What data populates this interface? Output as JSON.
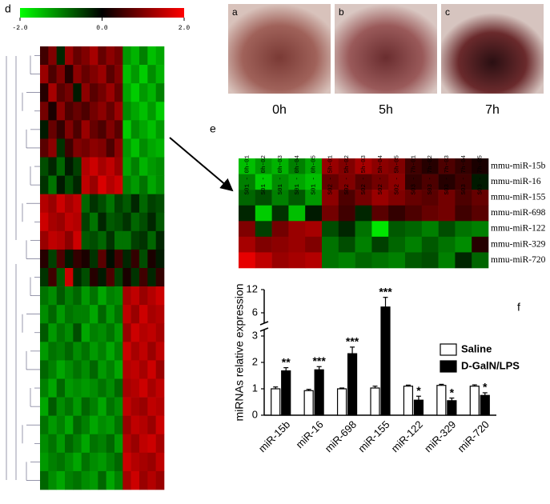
{
  "photos": {
    "panels": [
      "a",
      "b",
      "c"
    ],
    "times": [
      "0h",
      "5h",
      "7h"
    ]
  },
  "chart_data": [
    {
      "type": "heatmap",
      "label": "d",
      "zlim": [
        -2,
        2
      ],
      "zticks": [
        {
          "value": -2,
          "label": "-2.0"
        },
        {
          "value": 0,
          "label": "0.0"
        },
        {
          "value": 2,
          "label": "2.0"
        }
      ],
      "values": [
        [
          0.5,
          1.0,
          -0.3,
          1.2,
          0.8,
          1.0,
          1.3,
          0.8,
          1.1,
          0.9,
          -1.2,
          -1.4,
          -1.0,
          -1.5,
          -1.3
        ],
        [
          1.2,
          0.6,
          1.0,
          0.3,
          1.1,
          0.8,
          1.0,
          1.2,
          0.7,
          1.0,
          -1.5,
          -1.2,
          -1.6,
          -1.1,
          -1.4
        ],
        [
          0.3,
          1.3,
          0.7,
          0.9,
          -0.2,
          1.1,
          0.7,
          0.9,
          1.2,
          0.8,
          -1.3,
          -1.6,
          -1.2,
          -1.4,
          -1.0
        ],
        [
          0.9,
          0.2,
          1.1,
          0.6,
          0.8,
          0.6,
          0.9,
          1.1,
          0.8,
          1.2,
          -1.1,
          -1.3,
          -1.5,
          -1.2,
          -1.6
        ],
        [
          -0.2,
          0.8,
          0.4,
          1.0,
          0.6,
          1.2,
          0.8,
          0.6,
          1.0,
          0.7,
          -1.6,
          -1.1,
          -1.3,
          -1.5,
          -1.2
        ],
        [
          0.7,
          1.1,
          -0.4,
          0.5,
          1.0,
          0.9,
          1.1,
          1.0,
          0.6,
          1.1,
          -1.2,
          -1.5,
          -1.1,
          -1.3,
          -1.4
        ],
        [
          -0.6,
          -0.3,
          -0.8,
          -0.2,
          -0.5,
          1.4,
          1.6,
          1.3,
          1.5,
          1.2,
          -1.3,
          -1.0,
          -1.4,
          -1.2,
          -1.1
        ],
        [
          -0.4,
          -0.9,
          -0.2,
          -0.6,
          -0.3,
          1.5,
          1.2,
          1.7,
          1.4,
          1.6,
          -1.0,
          -1.2,
          -0.9,
          -1.3,
          -1.1
        ],
        [
          1.4,
          1.2,
          1.6,
          1.3,
          1.5,
          -0.8,
          -0.4,
          -0.6,
          -0.9,
          -0.5,
          -0.7,
          -0.3,
          -0.8,
          -0.5,
          -0.6
        ],
        [
          1.6,
          1.3,
          1.2,
          1.5,
          1.4,
          -0.5,
          -0.9,
          -0.3,
          -0.7,
          -0.6,
          -0.4,
          -0.8,
          -0.6,
          -0.3,
          -0.7
        ],
        [
          1.2,
          1.5,
          1.4,
          1.1,
          1.6,
          -0.7,
          -0.6,
          -0.8,
          -0.4,
          -0.9,
          -0.9,
          -0.5,
          -0.4,
          -0.8,
          -0.3
        ],
        [
          0.3,
          -0.5,
          0.6,
          -0.2,
          0.4,
          0.2,
          -0.4,
          0.7,
          -0.1,
          0.5,
          -0.3,
          0.4,
          -0.6,
          0.2,
          -0.2
        ],
        [
          -0.4,
          0.5,
          -0.7,
          1.6,
          -0.3,
          -0.6,
          0.3,
          -0.2,
          0.6,
          -0.5,
          0.2,
          -0.4,
          0.5,
          -0.3,
          0.4
        ],
        [
          -0.9,
          -1.1,
          -0.7,
          -1.0,
          -0.8,
          -1.2,
          -0.9,
          -1.3,
          -1.0,
          -1.1,
          1.3,
          1.5,
          1.2,
          1.4,
          1.6
        ],
        [
          -1.1,
          -0.8,
          -1.2,
          -0.9,
          -1.0,
          -1.0,
          -1.3,
          -0.8,
          -1.2,
          -0.9,
          1.5,
          1.2,
          1.6,
          1.3,
          1.4
        ],
        [
          -0.7,
          -1.2,
          -0.9,
          -1.1,
          -0.6,
          -1.3,
          -1.0,
          -1.1,
          -0.9,
          -1.2,
          1.2,
          1.6,
          1.4,
          1.5,
          1.3
        ],
        [
          -1.2,
          -0.9,
          -1.0,
          -0.8,
          -1.1,
          -0.9,
          -1.2,
          -1.0,
          -1.3,
          -1.0,
          1.6,
          1.3,
          1.5,
          1.2,
          1.5
        ],
        [
          -0.8,
          -1.0,
          -1.3,
          -1.1,
          -0.9,
          -1.1,
          -0.8,
          -1.2,
          -1.0,
          -1.3,
          1.4,
          1.5,
          1.3,
          1.6,
          1.2
        ],
        [
          -1.0,
          -1.3,
          -0.8,
          -1.2,
          -1.1,
          -1.2,
          -1.1,
          -0.9,
          -1.1,
          -0.8,
          1.3,
          1.4,
          1.6,
          1.3,
          1.5
        ],
        [
          -1.3,
          -0.7,
          -1.1,
          -0.9,
          -1.2,
          -0.8,
          -1.0,
          -1.3,
          -0.9,
          -1.1,
          1.5,
          1.3,
          1.2,
          1.5,
          1.4
        ],
        [
          -0.9,
          -1.2,
          -1.0,
          -1.3,
          -0.8,
          -1.0,
          -1.3,
          -1.1,
          -1.2,
          -0.9,
          1.2,
          1.5,
          1.4,
          1.2,
          1.6
        ],
        [
          -1.1,
          -0.9,
          -1.2,
          -0.8,
          -1.0,
          -1.3,
          -0.9,
          -1.0,
          -0.8,
          -1.2,
          1.4,
          1.2,
          1.5,
          1.6,
          1.3
        ],
        [
          -1.2,
          -1.0,
          -0.9,
          -1.1,
          -1.3,
          -0.9,
          -1.1,
          -1.2,
          -1.0,
          -0.8,
          1.6,
          1.4,
          1.3,
          1.2,
          1.5
        ],
        [
          -0.8,
          -1.1,
          -1.3,
          -1.0,
          -0.9,
          -1.1,
          -1.2,
          -0.8,
          -1.3,
          -1.0,
          1.3,
          1.6,
          1.2,
          1.4,
          1.2
        ]
      ]
    },
    {
      "type": "heatmap",
      "label": "e",
      "zlim": [
        -2,
        2
      ],
      "x": [
        "S01 - 0h-01",
        "S01 - 0h-02",
        "S01 - 0h-03",
        "S01 - 0h-04",
        "S01 - 0h-05",
        "S02 - 5h-01",
        "S02 - 5h-02",
        "S02 - 5h-03",
        "S02 - 5h-04",
        "S02 - 5h-05",
        "S03 - 7h-01",
        "S03 - 7h-02",
        "S03 - 7h-03",
        "S03 - 7h-04",
        "S03 - 7h-05"
      ],
      "y": [
        "mmu-miR-15b",
        "mmu-miR-16",
        "mmu-miR-155",
        "mmu-miR-698",
        "mmu-miR-122",
        "mmu-miR-329",
        "mmu-miR-720"
      ],
      "values": [
        [
          -1.5,
          -1.2,
          -1.4,
          -1.0,
          -1.3,
          1.2,
          1.0,
          1.3,
          1.1,
          1.0,
          0.5,
          0.3,
          0.6,
          0.4,
          0.2
        ],
        [
          -1.0,
          -1.6,
          -1.1,
          -1.3,
          -1.5,
          0.8,
          1.0,
          0.7,
          0.9,
          1.1,
          0.4,
          0.6,
          0.3,
          0.5,
          -0.2
        ],
        [
          -0.8,
          -0.6,
          -1.0,
          -0.7,
          -1.2,
          1.1,
          0.6,
          0.9,
          1.2,
          1.0,
          0.8,
          0.7,
          0.9,
          0.6,
          0.8
        ],
        [
          -0.3,
          -1.6,
          -0.4,
          -1.5,
          -0.2,
          0.9,
          0.5,
          -0.3,
          0.7,
          0.4,
          0.6,
          0.8,
          0.9,
          0.5,
          0.7
        ],
        [
          1.0,
          -0.5,
          0.9,
          1.2,
          1.3,
          -0.6,
          -0.3,
          -0.9,
          -1.8,
          -0.7,
          -0.8,
          -1.0,
          -0.6,
          -0.9,
          -1.0
        ],
        [
          1.3,
          1.0,
          1.1,
          1.2,
          1.0,
          -0.9,
          -0.6,
          -1.0,
          -0.5,
          -0.8,
          -1.0,
          -0.7,
          -0.9,
          -1.1,
          0.3
        ],
        [
          1.8,
          1.5,
          1.2,
          1.3,
          1.4,
          -0.9,
          -1.0,
          -0.8,
          -0.9,
          -1.0,
          -0.7,
          -0.6,
          -1.0,
          -0.3,
          -0.8
        ]
      ]
    },
    {
      "type": "bar",
      "label": "f",
      "y_label": "miRNAs relative expression",
      "categories": [
        "miR-15b",
        "miR-16",
        "miR-698",
        "miR-155",
        "miR-122",
        "miR-329",
        "miR-720"
      ],
      "ylim": [
        0,
        12
      ],
      "yticks": [
        0,
        1,
        2,
        3,
        6,
        12
      ],
      "y_break": [
        3,
        6
      ],
      "series": [
        {
          "name": "Saline",
          "color": "#ffffff",
          "values": [
            1.0,
            0.93,
            1.0,
            1.03,
            1.1,
            1.13,
            1.1
          ],
          "errors": [
            0.07,
            0.05,
            0.03,
            0.07,
            0.04,
            0.04,
            0.05
          ]
        },
        {
          "name": "D-GalN/LPS",
          "color": "#000000",
          "values": [
            1.68,
            1.72,
            2.33,
            7.5,
            0.57,
            0.55,
            0.75
          ],
          "errors": [
            0.12,
            0.12,
            0.25,
            2.5,
            0.15,
            0.1,
            0.1
          ],
          "significance": [
            "**",
            "***",
            "***",
            "***",
            "*",
            "*",
            "*"
          ]
        }
      ]
    }
  ]
}
